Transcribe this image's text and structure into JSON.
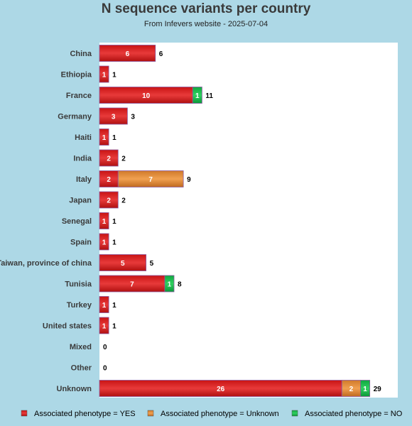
{
  "chart_data": {
    "type": "bar",
    "orientation": "horizontal",
    "stacked": true,
    "title": "N sequence variants per country",
    "subtitle": "From Infevers website - 2025-07-04",
    "categories": [
      "China",
      "Ethiopia",
      "France",
      "Germany",
      "Haiti",
      "India",
      "Italy",
      "Japan",
      "Senegal",
      "Spain",
      "Taiwan, province of china",
      "Tunisia",
      "Turkey",
      "United states",
      "Mixed",
      "Other",
      "Unknown"
    ],
    "series": [
      {
        "name": "Associated phenotype = YES",
        "color": "#d62020",
        "values": [
          6,
          1,
          10,
          3,
          1,
          2,
          2,
          2,
          1,
          1,
          5,
          7,
          1,
          1,
          0,
          0,
          26
        ]
      },
      {
        "name": "Associated phenotype = Unknown",
        "color": "#e3913f",
        "values": [
          0,
          0,
          0,
          0,
          0,
          0,
          7,
          0,
          0,
          0,
          0,
          0,
          0,
          0,
          0,
          0,
          2
        ]
      },
      {
        "name": "Associated phenotype = NO",
        "color": "#1fbf50",
        "values": [
          0,
          0,
          1,
          0,
          0,
          0,
          0,
          0,
          0,
          0,
          0,
          1,
          0,
          0,
          0,
          0,
          1
        ]
      }
    ],
    "totals": [
      6,
      1,
      11,
      3,
      1,
      2,
      9,
      2,
      1,
      1,
      5,
      8,
      1,
      1,
      0,
      0,
      29
    ],
    "xlim": [
      0,
      32
    ],
    "legend_position": "bottom",
    "grid": false
  }
}
